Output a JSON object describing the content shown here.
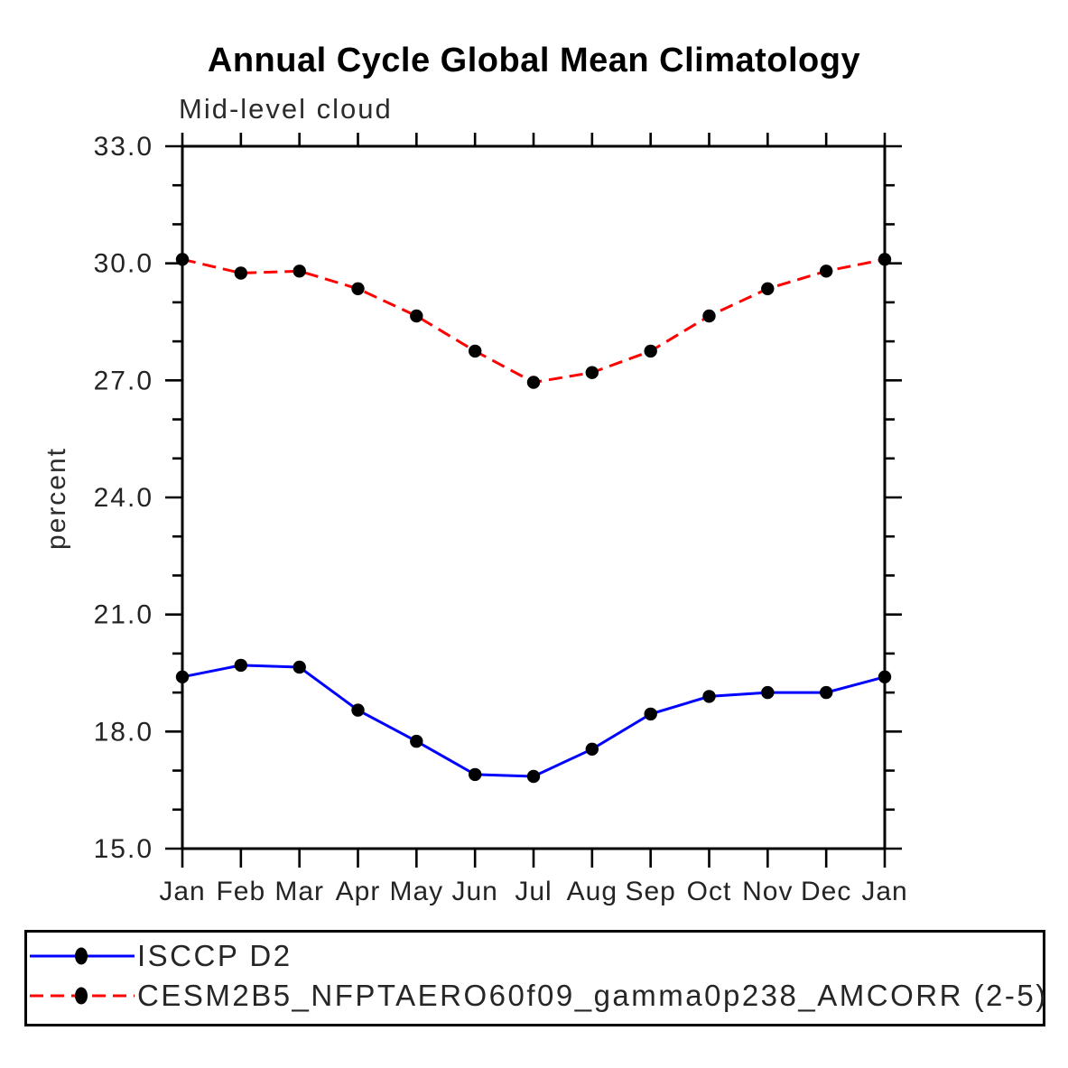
{
  "chart_data": {
    "type": "line",
    "title": "Annual Cycle Global Mean Climatology",
    "subtitle": "Mid-level cloud",
    "ylabel": "percent",
    "xlabel": "",
    "x_categories": [
      "Jan",
      "Feb",
      "Mar",
      "Apr",
      "May",
      "Jun",
      "Jul",
      "Aug",
      "Sep",
      "Oct",
      "Nov",
      "Dec",
      "Jan"
    ],
    "ylim": [
      15.0,
      33.0
    ],
    "ytick_major_interval": 3.0,
    "ytick_minor_interval": 1.0,
    "ytick_labels": [
      "15.0",
      "18.0",
      "21.0",
      "24.0",
      "27.0",
      "30.0",
      "33.0"
    ],
    "grid": false,
    "legend_position": "bottom-box",
    "axis_color": "#000000",
    "series": [
      {
        "name": "ISCCP D2",
        "color": "#0000ff",
        "line_style": "solid",
        "marker": "circle",
        "marker_color": "#000000",
        "values": [
          19.4,
          19.7,
          19.65,
          18.55,
          17.75,
          16.9,
          16.85,
          17.55,
          18.45,
          18.9,
          19.0,
          19.0,
          19.4
        ]
      },
      {
        "name": "CESM2B5_NFPTAERO60f09_gamma0p238_AMCORR (2-5)",
        "color": "#ff0000",
        "line_style": "dashed",
        "marker": "circle",
        "marker_color": "#000000",
        "values": [
          30.1,
          29.75,
          29.8,
          29.35,
          28.65,
          27.75,
          26.95,
          27.2,
          27.75,
          28.65,
          29.35,
          29.8,
          30.1
        ]
      }
    ]
  }
}
